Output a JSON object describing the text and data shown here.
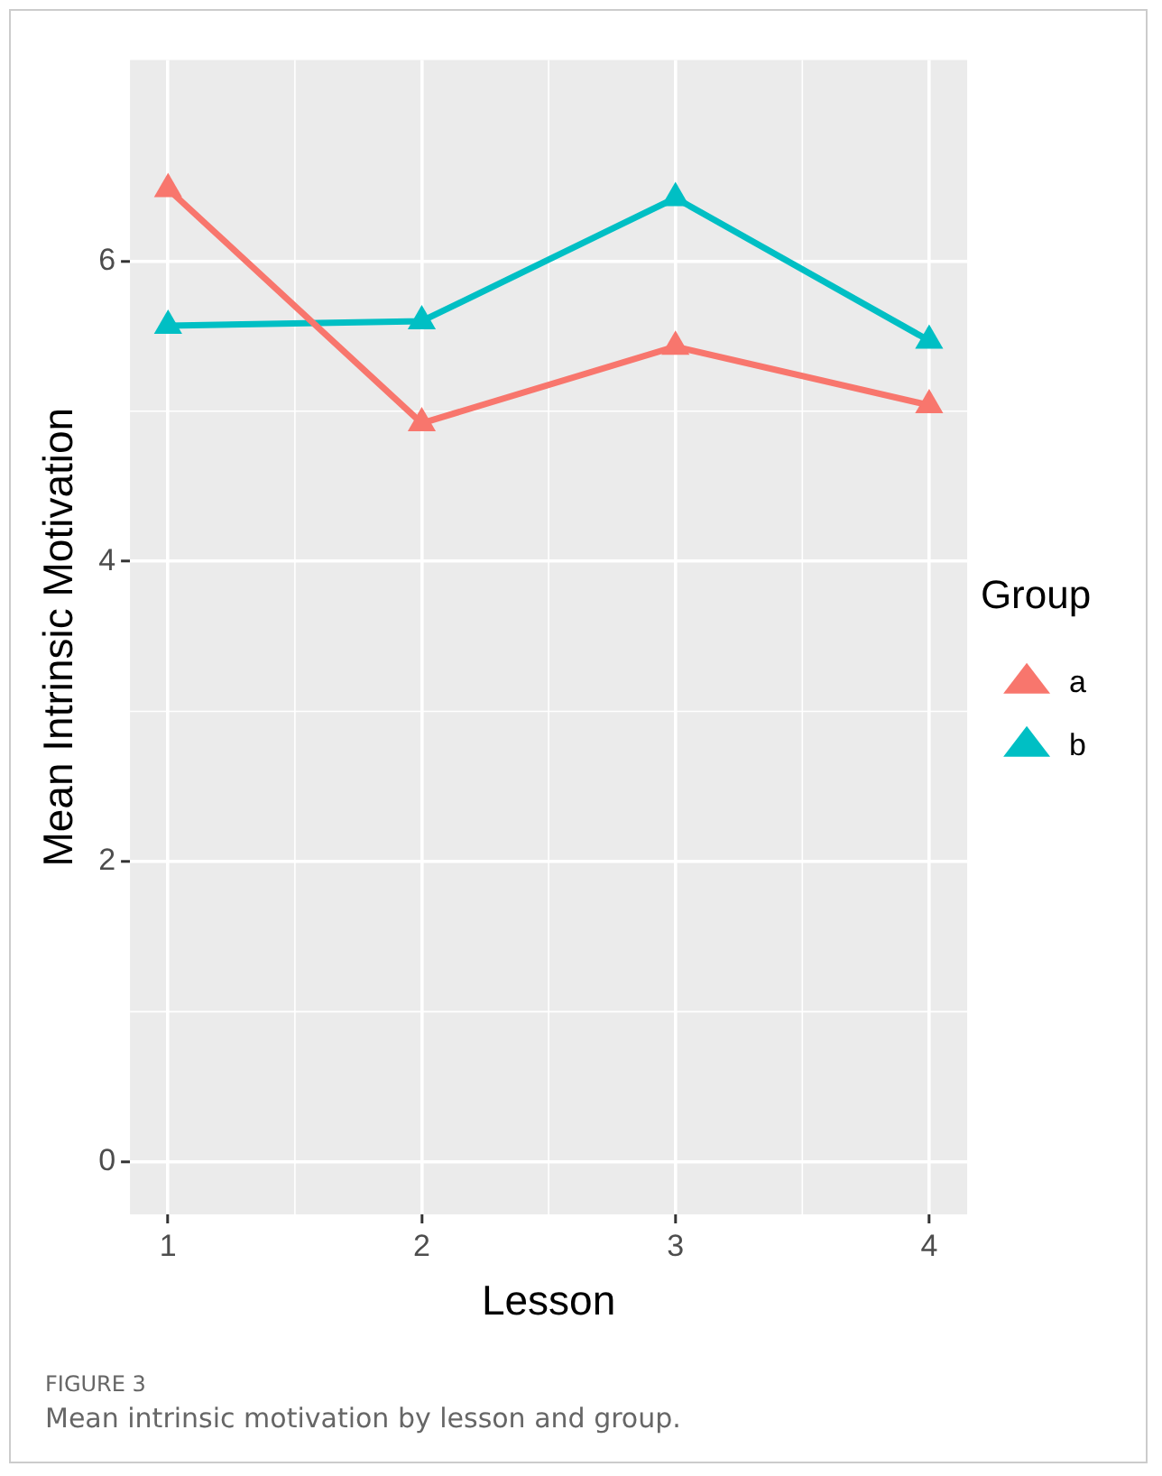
{
  "chart_data": {
    "type": "line",
    "xlabel": "Lesson",
    "ylabel": "Mean Intrinsic Motivation",
    "legend_title": "Group",
    "x": [
      1,
      2,
      3,
      4
    ],
    "series": [
      {
        "name": "a",
        "color": "#f8766d",
        "values": [
          6.48,
          4.92,
          5.43,
          5.04
        ]
      },
      {
        "name": "b",
        "color": "#00bfc4",
        "values": [
          5.57,
          5.6,
          6.42,
          5.47
        ]
      }
    ],
    "xlim": [
      0.85,
      4.15
    ],
    "xticks": [
      1,
      2,
      3,
      4
    ],
    "ylim": [
      -0.35,
      7.34
    ],
    "yticks": [
      0,
      2,
      4,
      6
    ],
    "grid": true,
    "legend": "right",
    "marker": "triangle",
    "line_style": "solid",
    "annotations": [
      "FIGURE 3",
      "Mean intrinsic motivation by lesson and group."
    ]
  }
}
